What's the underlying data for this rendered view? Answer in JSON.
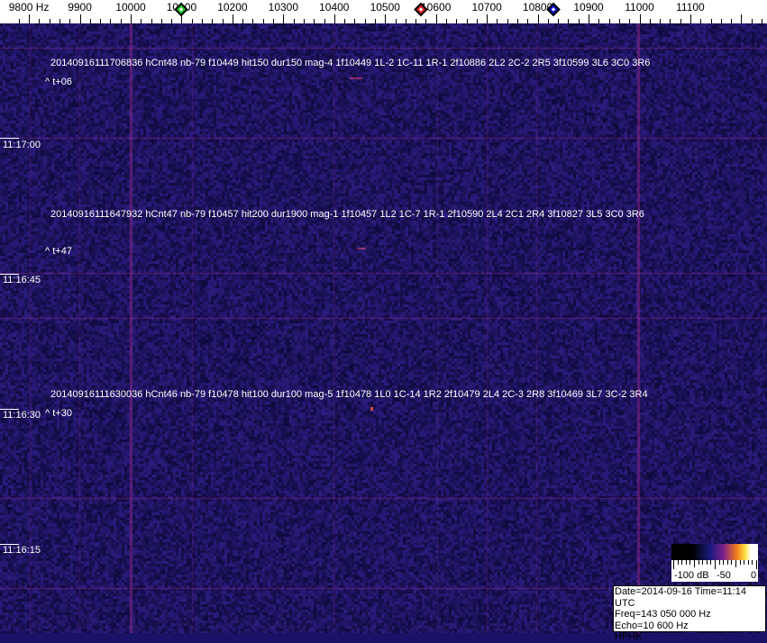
{
  "chart_data": {
    "type": "heatmap",
    "kind": "spectrogram waterfall",
    "x_axis": {
      "unit_label": "Hz",
      "tick_labels": [
        "9800 Hz",
        "9900",
        "10000",
        "10100",
        "10200",
        "10300",
        "10400",
        "10500",
        "10600",
        "10700",
        "10800",
        "10900",
        "11000",
        "11100"
      ],
      "tick_values": [
        9800,
        9900,
        10000,
        10100,
        10200,
        10300,
        10400,
        10500,
        10600,
        10700,
        10800,
        10900,
        11000,
        11100
      ],
      "range": [
        9775,
        11250
      ]
    },
    "y_axis": {
      "time_labels": [
        "11:17:00",
        "11:16:45",
        "11:16:30",
        "11:16:15"
      ]
    },
    "markers": [
      {
        "color": "#22cc22",
        "freq": 10100
      },
      {
        "color": "#dd2222",
        "freq": 10570
      },
      {
        "color": "#1111cc",
        "freq": 10830
      }
    ],
    "detections": [
      {
        "text": "20140916111706836 hCnt48 nb-79 f10449 hit150 dur150 mag-4 1f10449 1L-2 1C-11 1R-1 2f10886 2L2 2C-2 2R5 3f10599 3L6 3C0 3R6",
        "offset": "^ t+06"
      },
      {
        "text": "20140916111647932 hCnt47 nb-79 f10457 hit200 dur1900 mag-1 1f10457 1L2 1C-7 1R-1 2f10590 2L4 2C1 2R4 3f10827 3L5 3C0 3R6",
        "offset": "^ t+47"
      },
      {
        "text": "20140916111630036 hCnt46 nb-79 f10478 hit100 dur100 mag-5 1f10478 1L0 1C-14 1R2 2f10479 2L4 2C-3 2R8 3f10469 3L7 3C-2 3R4",
        "offset": "^ t+30"
      }
    ],
    "colorbar": {
      "labels": [
        "-100 dB",
        "-50",
        "0"
      ],
      "range_db": [
        -100,
        0
      ]
    },
    "colors": {
      "background": "#1a1266",
      "noise_line": "#7a2a8a"
    }
  },
  "info": {
    "date_time": "Date=2014-09-16 Time=11:14 UTC",
    "freq": "Freq=143 050 000 Hz",
    "echo": "Echo=10 600 Hz",
    "station": "HPHK"
  }
}
